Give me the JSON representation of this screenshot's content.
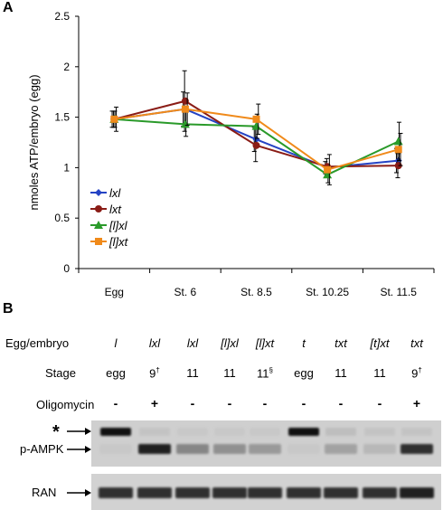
{
  "panel_a": {
    "letter": "A"
  },
  "panel_b": {
    "letter": "B"
  },
  "chart_data": {
    "type": "line",
    "title": "",
    "xlabel": "",
    "ylabel": "nmoles ATP/embryo (egg)",
    "categories": [
      "Egg",
      "St. 6",
      "St. 8.5",
      "St. 10.25",
      "St. 11.5"
    ],
    "ylim": [
      0,
      2.5
    ],
    "yticks": [
      "0",
      "0.5",
      "1",
      "1.5",
      "2",
      "2.5"
    ],
    "grid": false,
    "legend_position": "left-middle",
    "series": [
      {
        "name": "lxl",
        "color": "#2443c4",
        "marker": "diamond",
        "values": [
          1.48,
          1.58,
          1.28,
          1.0,
          1.07
        ],
        "errors": [
          0.08,
          0.17,
          0.12,
          0.06,
          0.12
        ]
      },
      {
        "name": "lxt",
        "color": "#8a1c16",
        "marker": "circle",
        "values": [
          1.48,
          1.66,
          1.22,
          1.01,
          1.02
        ],
        "errors": [
          0.08,
          0.3,
          0.16,
          0.08,
          0.12
        ]
      },
      {
        "name": "[l]xl",
        "color": "#2a9a2a",
        "marker": "triangle",
        "values": [
          1.48,
          1.43,
          1.41,
          0.93,
          1.26
        ],
        "errors": [
          0.08,
          0.12,
          0.12,
          0.08,
          0.19
        ]
      },
      {
        "name": "[l]xt",
        "color": "#f08a1a",
        "marker": "square",
        "values": [
          1.48,
          1.58,
          1.48,
          0.98,
          1.18
        ],
        "errors": [
          0.12,
          0.16,
          0.15,
          0.15,
          0.16
        ]
      }
    ]
  },
  "blot_table": {
    "row_labels": {
      "egg_embryo": "Egg/embryo",
      "stage": "Stage",
      "oligomycin": "Oligomycin"
    },
    "columns": [
      {
        "egg": "l",
        "stage": "egg",
        "sup": "",
        "oligo": "-"
      },
      {
        "egg": "lxl",
        "stage": "9",
        "sup": "†",
        "oligo": "+"
      },
      {
        "egg": "lxl",
        "stage": "11",
        "sup": "",
        "oligo": "-"
      },
      {
        "egg": "[l]xl",
        "stage": "11",
        "sup": "",
        "oligo": "-"
      },
      {
        "egg": "[l]xt",
        "stage": "11",
        "sup": "§",
        "oligo": "-"
      },
      {
        "egg": "t",
        "stage": "egg",
        "sup": "",
        "oligo": "-"
      },
      {
        "egg": "txt",
        "stage": "11",
        "sup": "",
        "oligo": "-"
      },
      {
        "egg": "[t]xt",
        "stage": "11",
        "sup": "",
        "oligo": "-"
      },
      {
        "egg": "txt",
        "stage": "9",
        "sup": "†",
        "oligo": "+"
      }
    ]
  },
  "blots": {
    "labels": {
      "star": "*",
      "pampk": "p-AMPK",
      "ran": "RAN"
    },
    "star_band_intensity": [
      0.95,
      0.1,
      0.05,
      0.05,
      0.05,
      0.95,
      0.15,
      0.1,
      0.1
    ],
    "pampk_band_intensity": [
      0.05,
      0.9,
      0.5,
      0.45,
      0.4,
      0.05,
      0.35,
      0.2,
      0.85
    ],
    "ran_band_intensity": [
      0.85,
      0.85,
      0.85,
      0.85,
      0.85,
      0.85,
      0.85,
      0.85,
      0.9
    ]
  }
}
